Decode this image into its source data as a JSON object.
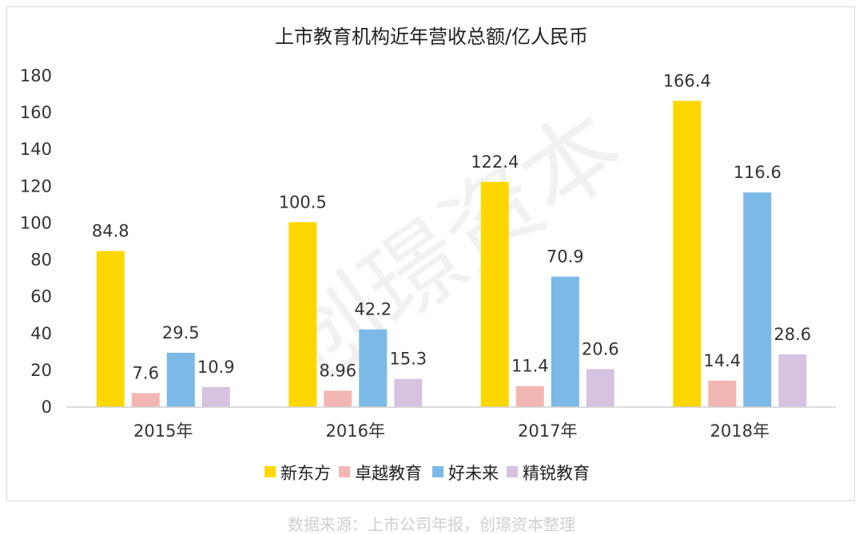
{
  "chart_data": {
    "type": "bar",
    "title": "上市教育机构近年营收总额/亿人民币",
    "categories": [
      "2015年",
      "2016年",
      "2017年",
      "2018年"
    ],
    "series": [
      {
        "name": "新东方",
        "color": "#FFD700",
        "values": [
          84.8,
          100.5,
          122.4,
          166.4
        ],
        "labels": [
          "84.8",
          "100.5",
          "122.4",
          "166.4"
        ]
      },
      {
        "name": "卓越教育",
        "color": "#F2B7B2",
        "values": [
          7.6,
          8.96,
          11.4,
          14.4
        ],
        "labels": [
          "7.6",
          "8.96",
          "11.4",
          "14.4"
        ]
      },
      {
        "name": "好未来",
        "color": "#7CB9E8",
        "values": [
          29.5,
          42.2,
          70.9,
          116.6
        ],
        "labels": [
          "29.5",
          "42.2",
          "70.9",
          "116.6"
        ]
      },
      {
        "name": "精锐教育",
        "color": "#D5C3E0",
        "values": [
          10.9,
          15.3,
          20.6,
          28.6
        ],
        "labels": [
          "10.9",
          "15.3",
          "20.6",
          "28.6"
        ]
      }
    ],
    "yticks": [
      0,
      20,
      40,
      60,
      80,
      100,
      120,
      140,
      160,
      180
    ],
    "ylim": [
      0,
      180
    ],
    "xlabel": "",
    "ylabel": "",
    "grid": false,
    "legend": "bottom"
  },
  "watermark": "创璟资本",
  "source": "数据来源：上市公司年报，创璟资本整理"
}
